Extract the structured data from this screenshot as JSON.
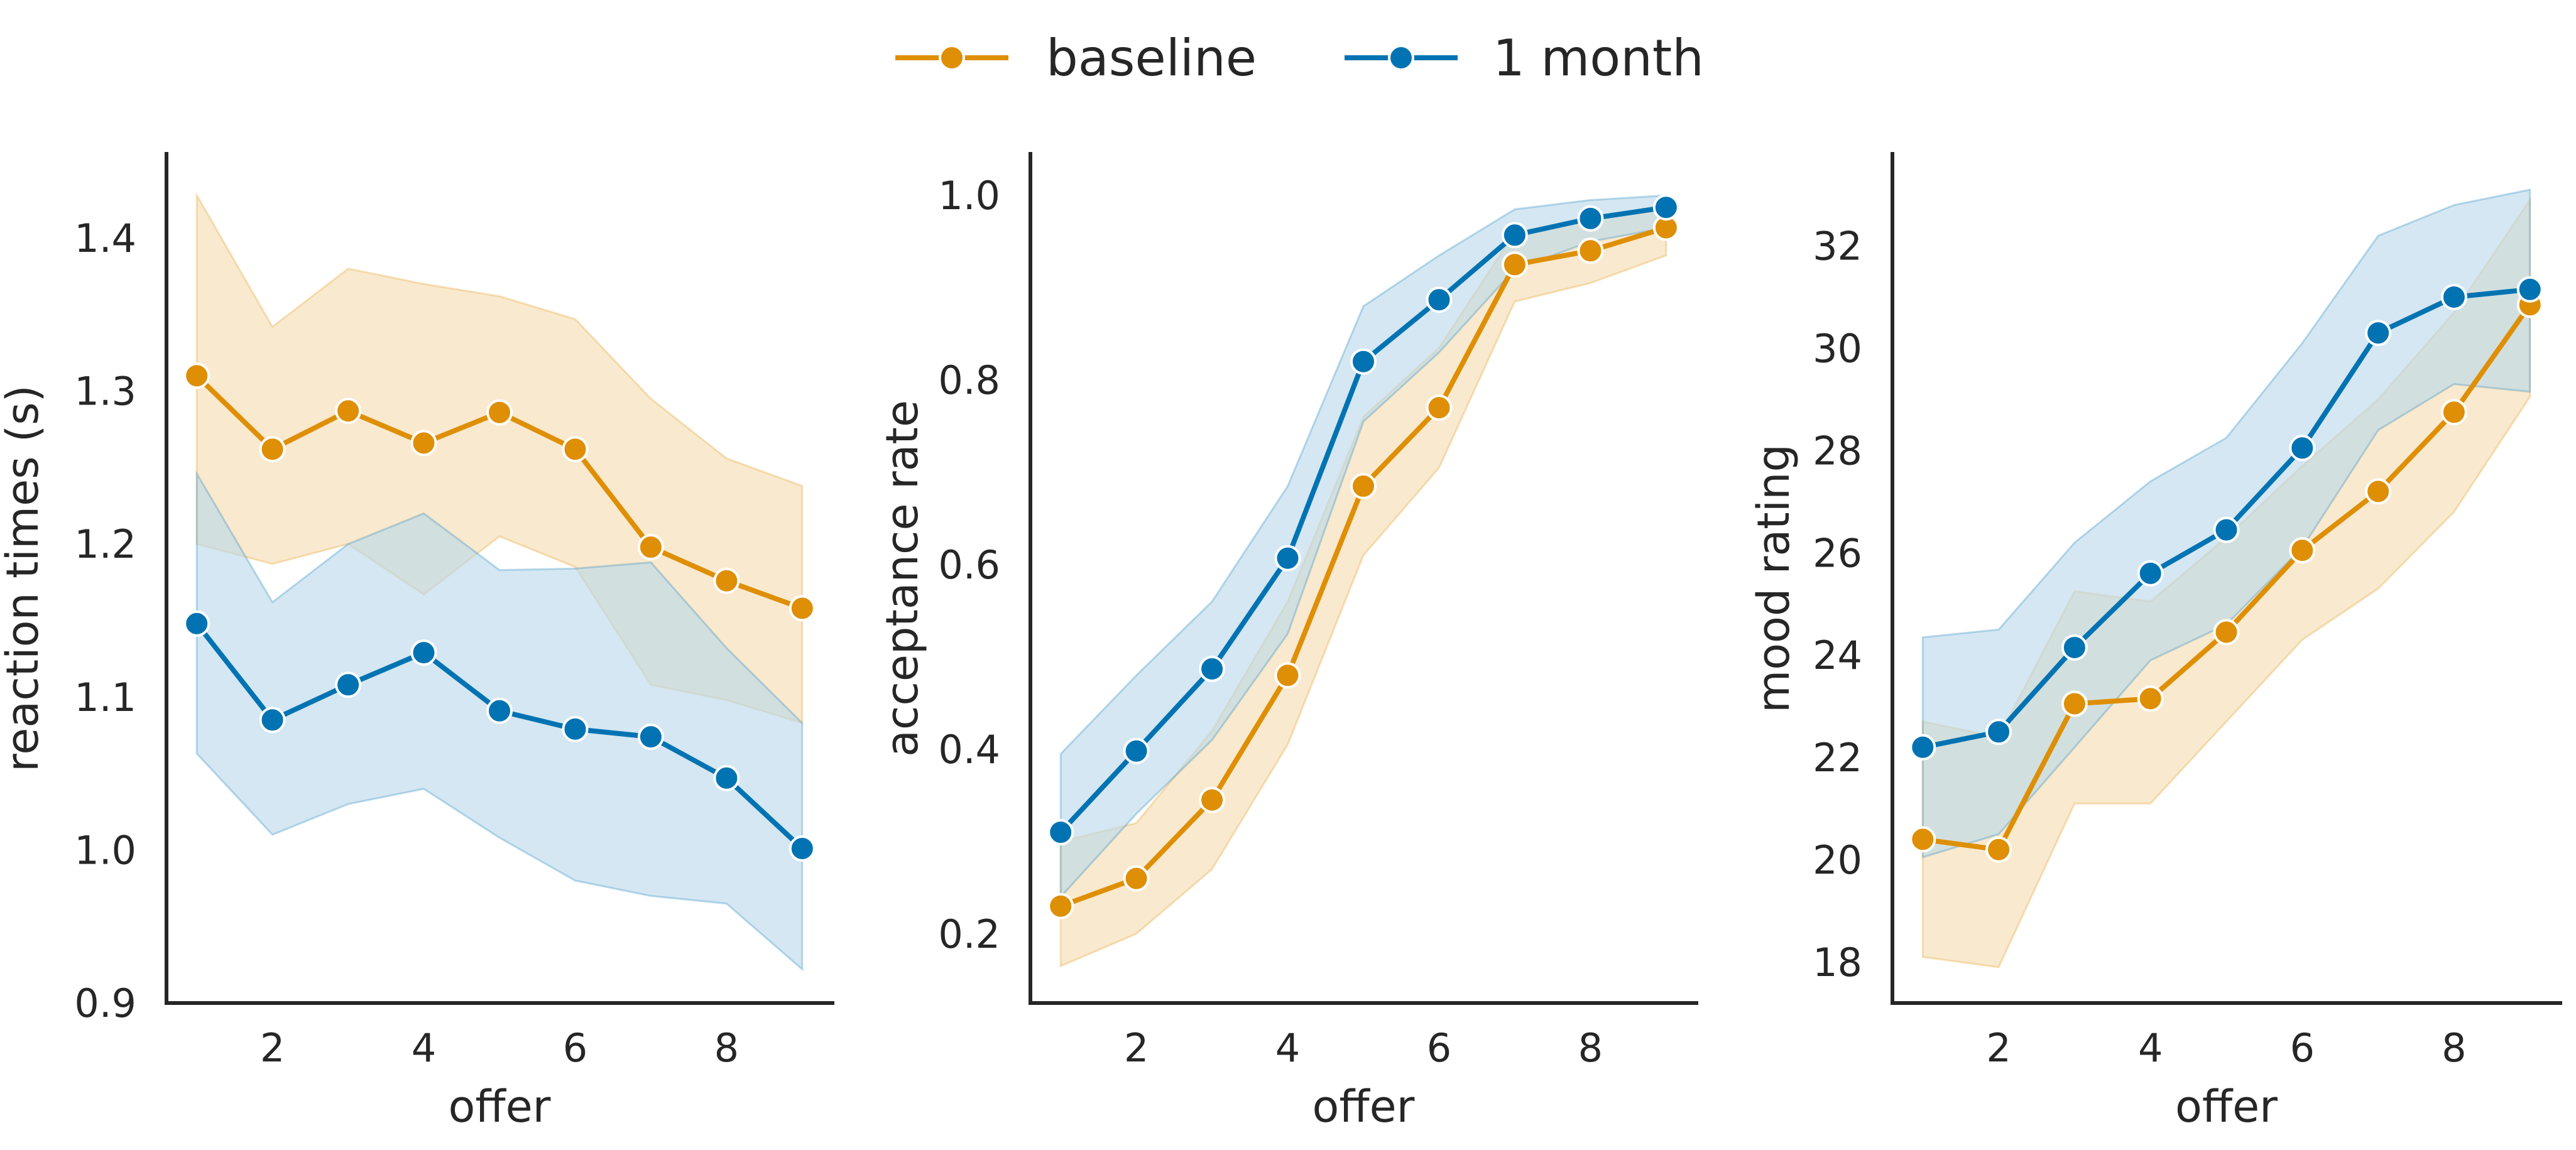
{
  "legend": {
    "placement": "top-center",
    "items": [
      {
        "label": "baseline",
        "color": "#de8f05"
      },
      {
        "label": "1 month",
        "color": "#0173b2"
      }
    ]
  },
  "colors": {
    "baseline": "#de8f05",
    "one_month": "#0173b2",
    "baseline_band": "#f5dcb0",
    "one_month_band": "#b9d8ea",
    "axis": "#262626"
  },
  "chart_data": [
    {
      "type": "line",
      "xlabel": "offer",
      "ylabel": "reaction times (s)",
      "xlim": [
        0.6,
        9.4
      ],
      "ylim": [
        0.9,
        1.455
      ],
      "xticks": [
        2,
        4,
        6,
        8
      ],
      "yticks": [
        0.9,
        1.0,
        1.1,
        1.2,
        1.3,
        1.4
      ],
      "ytick_labels": [
        "0.9",
        "1.0",
        "1.1",
        "1.2",
        "1.3",
        "1.4"
      ],
      "grid": false,
      "x": [
        1,
        2,
        3,
        4,
        5,
        6,
        7,
        8,
        9
      ],
      "series": [
        {
          "name": "baseline",
          "values": [
            1.31,
            1.262,
            1.287,
            1.266,
            1.286,
            1.262,
            1.198,
            1.176,
            1.158
          ],
          "ci_low": [
            1.2,
            1.187,
            1.2,
            1.167,
            1.205,
            1.185,
            1.108,
            1.098,
            1.083
          ],
          "ci_high": [
            1.428,
            1.342,
            1.38,
            1.37,
            1.362,
            1.347,
            1.295,
            1.256,
            1.238
          ]
        },
        {
          "name": "1 month",
          "values": [
            1.148,
            1.085,
            1.108,
            1.129,
            1.091,
            1.079,
            1.074,
            1.047,
            1.001
          ],
          "ci_low": [
            1.063,
            1.01,
            1.03,
            1.04,
            1.008,
            0.98,
            0.97,
            0.965,
            0.922
          ],
          "ci_high": [
            1.246,
            1.162,
            1.2,
            1.22,
            1.183,
            1.184,
            1.188,
            1.132,
            1.083
          ]
        }
      ]
    },
    {
      "type": "line",
      "xlabel": "offer",
      "ylabel": "acceptance rate",
      "xlim": [
        0.6,
        9.4
      ],
      "ylim": [
        0.125,
        1.045
      ],
      "xticks": [
        2,
        4,
        6,
        8
      ],
      "yticks": [
        0.2,
        0.4,
        0.6,
        0.8,
        1.0
      ],
      "ytick_labels": [
        "0.2",
        "0.4",
        "0.6",
        "0.8",
        "1.0"
      ],
      "grid": false,
      "x": [
        1,
        2,
        3,
        4,
        5,
        6,
        7,
        8,
        9
      ],
      "series": [
        {
          "name": "baseline",
          "values": [
            0.23,
            0.26,
            0.345,
            0.48,
            0.685,
            0.77,
            0.925,
            0.94,
            0.965
          ],
          "ci_low": [
            0.165,
            0.2,
            0.27,
            0.405,
            0.61,
            0.705,
            0.885,
            0.905,
            0.935
          ],
          "ci_high": [
            0.3,
            0.32,
            0.42,
            0.56,
            0.76,
            0.835,
            0.96,
            0.975,
            0.99
          ]
        },
        {
          "name": "1 month",
          "values": [
            0.31,
            0.398,
            0.487,
            0.607,
            0.82,
            0.887,
            0.957,
            0.975,
            0.987
          ],
          "ci_low": [
            0.24,
            0.33,
            0.41,
            0.525,
            0.755,
            0.83,
            0.92,
            0.95,
            0.965
          ],
          "ci_high": [
            0.395,
            0.48,
            0.56,
            0.685,
            0.88,
            0.935,
            0.985,
            0.995,
            1.0
          ]
        }
      ]
    },
    {
      "type": "line",
      "xlabel": "offer",
      "ylabel": "mood rating",
      "xlim": [
        0.6,
        9.4
      ],
      "ylim": [
        17.2,
        33.8
      ],
      "xticks": [
        2,
        4,
        6,
        8
      ],
      "yticks": [
        18,
        20,
        22,
        24,
        26,
        28,
        30,
        32
      ],
      "ytick_labels": [
        "18",
        "20",
        "22",
        "24",
        "26",
        "28",
        "30",
        "32"
      ],
      "grid": false,
      "x": [
        1,
        2,
        3,
        4,
        5,
        6,
        7,
        8,
        9
      ],
      "series": [
        {
          "name": "baseline",
          "values": [
            20.4,
            20.2,
            23.05,
            23.15,
            24.45,
            26.05,
            27.2,
            28.75,
            30.85
          ],
          "ci_low": [
            18.1,
            17.9,
            21.1,
            21.1,
            22.7,
            24.3,
            25.3,
            26.8,
            29.05
          ],
          "ci_high": [
            22.7,
            22.4,
            25.25,
            25.05,
            26.3,
            27.7,
            29.0,
            30.7,
            32.9
          ]
        },
        {
          "name": "1 month",
          "values": [
            22.2,
            22.5,
            24.15,
            25.6,
            26.45,
            28.05,
            30.3,
            31.0,
            31.15
          ],
          "ci_low": [
            20.05,
            20.5,
            22.2,
            23.9,
            24.6,
            26.1,
            28.4,
            29.3,
            29.15
          ],
          "ci_high": [
            24.35,
            24.5,
            26.2,
            27.4,
            28.25,
            30.1,
            32.2,
            32.8,
            33.1
          ]
        }
      ]
    }
  ]
}
